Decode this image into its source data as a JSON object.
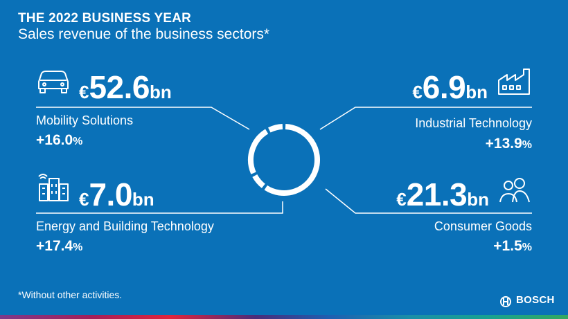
{
  "header": {
    "title": "THE 2022 BUSINESS YEAR",
    "subtitle": "Sales revenue of the business sectors*"
  },
  "sectors": [
    {
      "name": "Mobility Solutions",
      "currency": "€",
      "amount": "52.6",
      "unit": "bn",
      "growth": "+16.0",
      "growth_unit": "%",
      "icon": "car-icon"
    },
    {
      "name": "Industrial Technology",
      "currency": "€",
      "amount": "6.9",
      "unit": "bn",
      "growth": "+13.9",
      "growth_unit": "%",
      "icon": "factory-icon"
    },
    {
      "name": "Energy and Building Technology",
      "currency": "€",
      "amount": "7.0",
      "unit": "bn",
      "growth": "+17.4",
      "growth_unit": "%",
      "icon": "buildings-icon"
    },
    {
      "name": "Consumer Goods",
      "currency": "€",
      "amount": "21.3",
      "unit": "bn",
      "growth": "+1.5",
      "growth_unit": "%",
      "icon": "people-icon"
    }
  ],
  "footnote": "*Without other activities.",
  "logo": {
    "text": "BOSCH"
  },
  "colors": {
    "background": "#0a71b8",
    "foreground": "#ffffff"
  },
  "chart_data": {
    "type": "pie",
    "style": "donut",
    "title": "Sales revenue of the business sectors*",
    "unit": "€bn",
    "categories": [
      "Mobility Solutions",
      "Industrial Technology",
      "Consumer Goods",
      "Energy and Building Technology"
    ],
    "values": [
      52.6,
      6.9,
      21.3,
      7.0
    ],
    "growth_percent": [
      16.0,
      13.9,
      1.5,
      17.4
    ]
  }
}
